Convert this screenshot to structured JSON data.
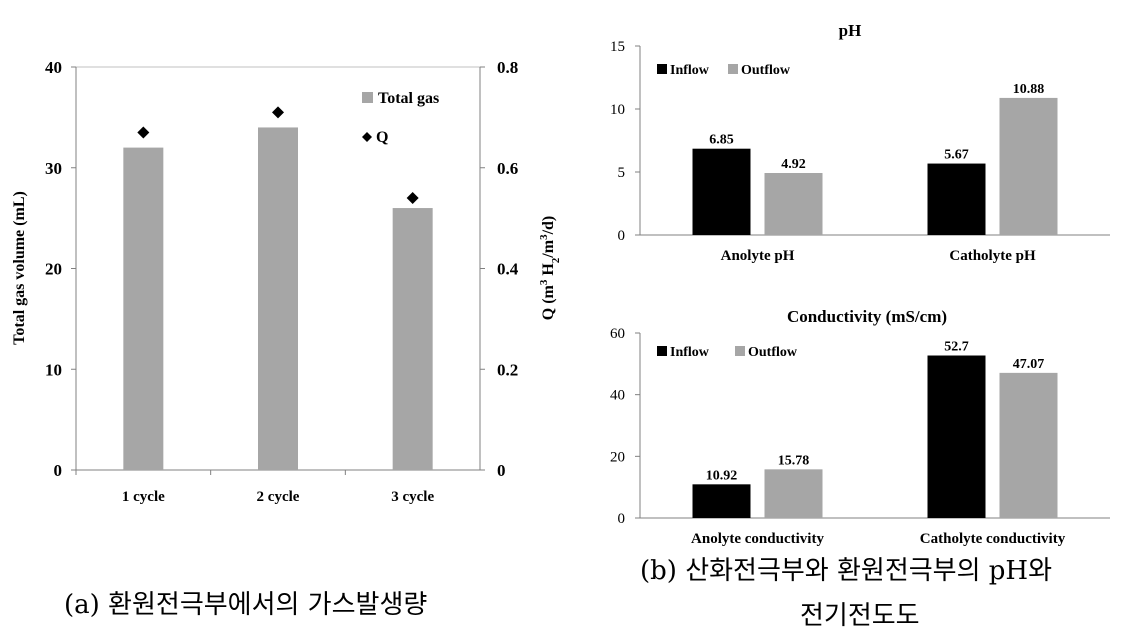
{
  "captions": {
    "a": "(a) 환원전극부에서의 가스발생량",
    "b_line1": "(b) 산화전극부와 환원전극부의 pH와",
    "b_line2": "전기전도도"
  },
  "colors": {
    "gray": "#a6a6a6",
    "black": "#000000"
  },
  "chart_data": [
    {
      "type": "bar",
      "categories": [
        "1 cycle",
        "2 cycle",
        "3 cycle"
      ],
      "ylabel": "Total gas volume (mL)",
      "ylim": [
        0,
        40
      ],
      "yticks": [
        0,
        10,
        20,
        30,
        40
      ],
      "y2label": "Q (m3 H2/m3/d)",
      "y2lim": [
        0,
        0.8
      ],
      "y2ticks": [
        "0",
        "0.2",
        "0.4",
        "0.6",
        "0.8"
      ],
      "series": [
        {
          "name": "Total gas",
          "kind": "bar",
          "axis": "left",
          "color": "#a6a6a6",
          "values": [
            32,
            34,
            26
          ]
        },
        {
          "name": "Q",
          "kind": "marker",
          "axis": "right",
          "color": "#000000",
          "values": [
            0.67,
            0.71,
            0.54
          ]
        }
      ],
      "legend": "top-right"
    },
    {
      "type": "bar",
      "title": "pH",
      "categories": [
        "Anolyte pH",
        "Catholyte pH"
      ],
      "ylim": [
        0,
        15
      ],
      "yticks": [
        0,
        5,
        10,
        15
      ],
      "series": [
        {
          "name": "Inflow",
          "color": "#000000",
          "values": [
            6.85,
            5.67
          ],
          "labels": [
            "6.85",
            "5.67"
          ]
        },
        {
          "name": "Outflow",
          "color": "#a6a6a6",
          "values": [
            4.92,
            10.88
          ],
          "labels": [
            "4.92",
            "10.88"
          ]
        }
      ],
      "legend": "top-left"
    },
    {
      "type": "bar",
      "title": "Conductivity (mS/cm)",
      "categories": [
        "Anolyte conductivity",
        "Catholyte conductivity"
      ],
      "ylim": [
        0,
        60
      ],
      "yticks": [
        0,
        20,
        40,
        60
      ],
      "series": [
        {
          "name": "Inflow",
          "color": "#000000",
          "values": [
            10.92,
            52.7
          ],
          "labels": [
            "10.92",
            "52.7"
          ]
        },
        {
          "name": "Outflow",
          "color": "#a6a6a6",
          "values": [
            15.78,
            47.07
          ],
          "labels": [
            "15.78",
            "47.07"
          ]
        }
      ],
      "legend": "top-left"
    }
  ]
}
